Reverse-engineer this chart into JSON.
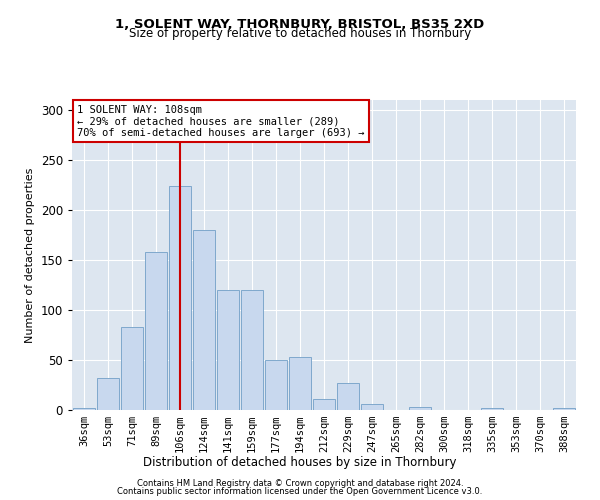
{
  "title1": "1, SOLENT WAY, THORNBURY, BRISTOL, BS35 2XD",
  "title2": "Size of property relative to detached houses in Thornbury",
  "xlabel": "Distribution of detached houses by size in Thornbury",
  "ylabel": "Number of detached properties",
  "categories": [
    "36sqm",
    "53sqm",
    "71sqm",
    "89sqm",
    "106sqm",
    "124sqm",
    "141sqm",
    "159sqm",
    "177sqm",
    "194sqm",
    "212sqm",
    "229sqm",
    "247sqm",
    "265sqm",
    "282sqm",
    "300sqm",
    "318sqm",
    "335sqm",
    "353sqm",
    "370sqm",
    "388sqm"
  ],
  "values": [
    2,
    32,
    83,
    158,
    224,
    180,
    120,
    120,
    50,
    53,
    11,
    27,
    6,
    0,
    3,
    0,
    0,
    2,
    0,
    0,
    2
  ],
  "bar_color": "#c8d8ee",
  "bar_edge_color": "#7fa8cc",
  "annotation_line1": "1 SOLENT WAY: 108sqm",
  "annotation_line2": "← 29% of detached houses are smaller (289)",
  "annotation_line3": "70% of semi-detached houses are larger (693) →",
  "annotation_box_color": "#ffffff",
  "annotation_box_edge": "#cc0000",
  "marker_line_color": "#cc0000",
  "background_color": "#dde6f0",
  "ylim": [
    0,
    310
  ],
  "yticks": [
    0,
    50,
    100,
    150,
    200,
    250,
    300
  ],
  "marker_idx": 4,
  "footer1": "Contains HM Land Registry data © Crown copyright and database right 2024.",
  "footer2": "Contains public sector information licensed under the Open Government Licence v3.0."
}
